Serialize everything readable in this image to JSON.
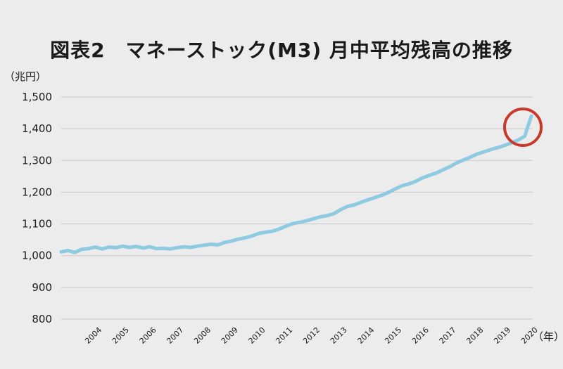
{
  "chart_data": {
    "type": "line",
    "title": "図表2　マネーストック(M3) 月中平均残高の推移",
    "ylabel": "（兆円）",
    "xlabel": "（年）",
    "ylim": [
      800,
      1500
    ],
    "y_ticks": [
      "1,500",
      "1,400",
      "1,300",
      "1,200",
      "1,100",
      "1,000",
      "900",
      "800"
    ],
    "y_tick_values": [
      1500,
      1400,
      1300,
      1200,
      1100,
      1000,
      900,
      800
    ],
    "x_ticks": [
      "2004",
      "2005",
      "2006",
      "2007",
      "2008",
      "2009",
      "2010",
      "2011",
      "2012",
      "2013",
      "2014",
      "2015",
      "2016",
      "2017",
      "2018",
      "2019",
      "2020"
    ],
    "grid": true,
    "series": [
      {
        "color": "#8ecae0",
        "x": [
          2003.0,
          2003.25,
          2003.5,
          2003.75,
          2004.0,
          2004.25,
          2004.5,
          2004.75,
          2005.0,
          2005.25,
          2005.5,
          2005.75,
          2006.0,
          2006.25,
          2006.5,
          2006.75,
          2007.0,
          2007.25,
          2007.5,
          2007.75,
          2008.0,
          2008.25,
          2008.5,
          2008.75,
          2009.0,
          2009.25,
          2009.5,
          2009.75,
          2010.0,
          2010.25,
          2010.5,
          2010.75,
          2011.0,
          2011.25,
          2011.5,
          2011.75,
          2012.0,
          2012.25,
          2012.5,
          2012.75,
          2013.0,
          2013.25,
          2013.5,
          2013.75,
          2014.0,
          2014.25,
          2014.5,
          2014.75,
          2015.0,
          2015.25,
          2015.5,
          2015.75,
          2016.0,
          2016.25,
          2016.5,
          2016.75,
          2017.0,
          2017.25,
          2017.5,
          2017.75,
          2018.0,
          2018.25,
          2018.5,
          2018.75,
          2019.0,
          2019.25,
          2019.5,
          2019.75,
          2020.0,
          2020.25
        ],
        "values": [
          1012,
          1016,
          1010,
          1020,
          1022,
          1027,
          1021,
          1027,
          1025,
          1030,
          1026,
          1029,
          1024,
          1028,
          1022,
          1023,
          1021,
          1025,
          1028,
          1026,
          1030,
          1033,
          1036,
          1034,
          1042,
          1046,
          1052,
          1056,
          1062,
          1070,
          1074,
          1077,
          1084,
          1093,
          1101,
          1105,
          1110,
          1116,
          1122,
          1126,
          1132,
          1145,
          1155,
          1160,
          1168,
          1176,
          1183,
          1190,
          1199,
          1210,
          1220,
          1226,
          1234,
          1245,
          1253,
          1260,
          1270,
          1280,
          1292,
          1301,
          1310,
          1320,
          1327,
          1334,
          1340,
          1347,
          1355,
          1364,
          1376,
          1440
        ]
      }
    ]
  }
}
